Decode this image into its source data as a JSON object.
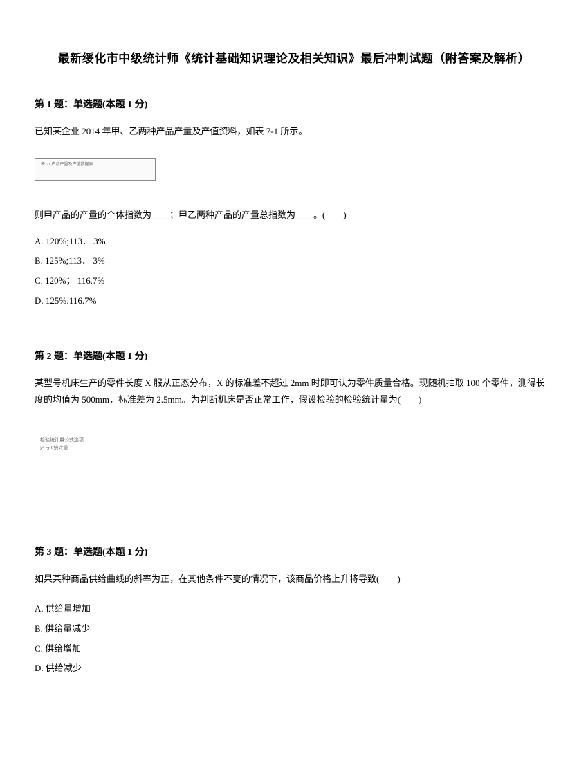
{
  "title": "最新绥化市中级统计师《统计基础知识理论及相关知识》最后冲刺试题（附答案及解析）",
  "q1": {
    "header": "第 1 题：单选题(本题 1 分)",
    "stem": "已知某企业 2014 年甲、乙两种产品产量及产值资料，如表 7-1 所示。",
    "continue": "则甲产品的产量的个体指数为____；甲乙两种产品的产量总指数为____。(　　)",
    "optionA": "A. 120%;113． 3%",
    "optionB": "B. 125%;113． 3%",
    "optionC": "C. 120%； 116.7%",
    "optionD": "D. 125%:116.7%",
    "imgAlt": "表7-1 产品产量及产值数据表"
  },
  "q2": {
    "header": "第 2 题：单选题(本题 1 分)",
    "stem": "某型号机床生产的零件长度 X 服从正态分布，X 的标准差不超过 2mm 时即可认为零件质量合格。现随机抽取 100 个零件，测得长度的均值为 500mm，标准差为 2.5mm。为判断机床是否正常工作，假设检验的检验统计量为(　　)",
    "imgAlt": "检验统计量公式选项 χ² 与 t 统计量"
  },
  "q3": {
    "header": "第 3 题：单选题(本题 1 分)",
    "stem": "如果某种商品供给曲线的斜率为正，在其他条件不变的情况下，该商品价格上升将导致(　　)",
    "optionA": "A. 供给量增加",
    "optionB": "B. 供给量减少",
    "optionC": "C. 供给增加",
    "optionD": "D. 供给减少"
  },
  "colors": {
    "text": "#000000",
    "background": "#ffffff"
  }
}
